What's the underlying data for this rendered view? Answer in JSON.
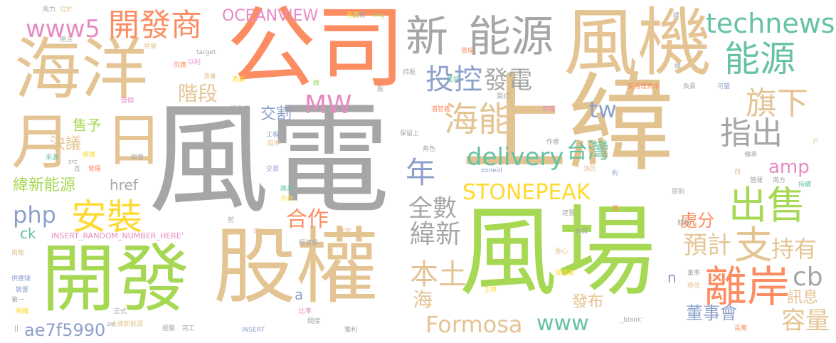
{
  "words": [
    {
      "text": "風電",
      "color": "#a6a6a6"
    },
    {
      "text": "上緯",
      "color": "#e2c28f"
    },
    {
      "text": "風場",
      "color": "#a6d854"
    },
    {
      "text": "公司",
      "color": "#fc8d62"
    },
    {
      "text": "股權",
      "color": "#e5c494"
    },
    {
      "text": "開發",
      "color": "#a6d854"
    },
    {
      "text": "風機",
      "color": "#e5c494"
    },
    {
      "text": "海洋",
      "color": "#e5c494"
    },
    {
      "text": "月",
      "color": "#e5c494"
    },
    {
      "text": "日",
      "color": "#e5c494"
    },
    {
      "text": "新",
      "color": "#a6a6a6"
    },
    {
      "text": "能源",
      "color": "#a6a6a6"
    },
    {
      "text": "能源",
      "color": "#66c2a5"
    },
    {
      "text": "technews",
      "color": "#66c2a5"
    },
    {
      "text": "開發商",
      "color": "#fc8d62"
    },
    {
      "text": "www5",
      "color": "#e78ac3"
    },
    {
      "text": "OCEANVIEW",
      "color": "#e78ac3"
    },
    {
      "text": "投控",
      "color": "#8da0cb"
    },
    {
      "text": "發電",
      "color": "#a6a6a6"
    },
    {
      "text": "海能",
      "color": "#e5c494"
    },
    {
      "text": "旗下",
      "color": "#e5c494"
    },
    {
      "text": "指出",
      "color": "#a6a6a6"
    },
    {
      "text": "出售",
      "color": "#a6d854"
    },
    {
      "text": "安裝",
      "color": "#ffd92f"
    },
    {
      "text": "階段",
      "color": "#e5c494"
    },
    {
      "text": "MW",
      "color": "#e78ac3"
    },
    {
      "text": "交割",
      "color": "#8da0cb"
    },
    {
      "text": "tw",
      "color": "#8da0cb"
    },
    {
      "text": "年",
      "color": "#8da0cb"
    },
    {
      "text": "delivery",
      "color": "#66c2a5"
    },
    {
      "text": "台灣",
      "color": "#66c2a5"
    },
    {
      "text": "amp",
      "color": "#e78ac3"
    },
    {
      "text": "STONEPEAK",
      "color": "#ffd92f"
    },
    {
      "text": "售予",
      "color": "#a6d854"
    },
    {
      "text": "決議",
      "color": "#e5c494"
    },
    {
      "text": "緯新能源",
      "color": "#a6d854"
    },
    {
      "text": "href",
      "color": "#a6a6a6"
    },
    {
      "text": "php",
      "color": "#8da0cb"
    },
    {
      "text": "ck",
      "color": "#66c2a5"
    },
    {
      "text": "全數",
      "color": "#a6a6a6"
    },
    {
      "text": "合作",
      "color": "#fc8d62"
    },
    {
      "text": "緯新",
      "color": "#a6a6a6"
    },
    {
      "text": "本土",
      "color": "#e5c494"
    },
    {
      "text": "支",
      "color": "#e5c494"
    },
    {
      "text": "持有",
      "color": "#e5c494"
    },
    {
      "text": "處分",
      "color": "#fc8d62"
    },
    {
      "text": "預計",
      "color": "#e5c494"
    },
    {
      "text": "離岸",
      "color": "#fc8d62"
    },
    {
      "text": "cb",
      "color": "#a6a6a6"
    },
    {
      "text": "訊息",
      "color": "#e5c494"
    },
    {
      "text": "容量",
      "color": "#e5c494"
    },
    {
      "text": "海",
      "color": "#e5c494"
    },
    {
      "text": "發布",
      "color": "#e5c494"
    },
    {
      "text": "www",
      "color": "#66c2a5"
    },
    {
      "text": "Formosa",
      "color": "#e5c494"
    },
    {
      "text": "董事會",
      "color": "#8da0cb"
    },
    {
      "text": "a",
      "color": "#8da0cb"
    },
    {
      "text": "ae7f5990",
      "color": "#8da0cb"
    },
    {
      "text": "n",
      "color": "#8da0cb"
    },
    {
      "text": "INSERT_RANDOM_NUMBER_HERE'",
      "color": "#e78ac3"
    },
    {
      "text": "風力",
      "color": "#a6a6a6"
    },
    {
      "text": "位於",
      "color": "#e5c494"
    },
    {
      "text": "商轉",
      "color": "#a6a6a6"
    },
    {
      "text": "先前",
      "color": "#ffd92f"
    },
    {
      "text": "img",
      "color": "#a6d854"
    },
    {
      "text": "緯",
      "color": "#a6a6a6"
    },
    {
      "text": "挹注",
      "color": "#a6a6a6"
    },
    {
      "text": "共榮",
      "color": "#e5c494"
    },
    {
      "text": "target",
      "color": "#a6a6a6"
    },
    {
      "text": "首座",
      "color": "#fc8d62"
    },
    {
      "text": "總",
      "color": "#a6a6a6"
    },
    {
      "text": "供應",
      "color": "#fc8d62"
    },
    {
      "text": "以利",
      "color": "#e78ac3"
    },
    {
      "text": "漁會",
      "color": "#e5c494"
    },
    {
      "text": "漁業",
      "color": "#ffd92f"
    },
    {
      "text": "持股",
      "color": "#a6a6a6"
    },
    {
      "text": "陸域",
      "color": "#66c2a5"
    },
    {
      "text": "釋",
      "color": "#a6d854"
    },
    {
      "text": "股",
      "color": "#a6a6a6"
    },
    {
      "text": "麥格理資本",
      "color": "#fc8d62"
    },
    {
      "text": "負責",
      "color": "#a6a6a6"
    },
    {
      "text": "可望",
      "color": "#8da0cb"
    },
    {
      "text": "首個",
      "color": "#e78ac3"
    },
    {
      "text": "開發案",
      "color": "#a6a6a6"
    },
    {
      "text": "簽訂",
      "color": "#a6a6a6"
    },
    {
      "text": "潘智義",
      "color": "#fc8d62"
    },
    {
      "text": "年底",
      "color": "#e78ac3"
    },
    {
      "text": "工程",
      "color": "#8da0cb"
    },
    {
      "text": "保留上",
      "color": "#a6a6a6"
    },
    {
      "text": "延伸",
      "color": "#e5c494"
    },
    {
      "text": "作者",
      "color": "#a6a6a6"
    },
    {
      "text": "角色",
      "color": "#a6a6a6"
    },
    {
      "text": "來源",
      "color": "#66c2a5"
    },
    {
      "text": "src",
      "color": "#a6a6a6"
    },
    {
      "text": "維護",
      "color": "#ffd92f"
    },
    {
      "text": "瓦",
      "color": "#a6a6a6"
    },
    {
      "text": "發展",
      "color": "#fc8d62"
    },
    {
      "text": "同意",
      "color": "#a6a6a6"
    },
    {
      "text": "交易",
      "color": "#8da0cb"
    },
    {
      "text": "zoneid",
      "color": "#8da0cb"
    },
    {
      "text": "漁民",
      "color": "#e5c494"
    },
    {
      "text": "約",
      "color": "#8da0cb"
    },
    {
      "text": "傳承",
      "color": "#a6a6a6"
    },
    {
      "text": "西",
      "color": "#e5c494"
    },
    {
      "text": "戶",
      "color": "#e5c494"
    },
    {
      "text": "營運",
      "color": "#a6a6a6"
    },
    {
      "text": "南方",
      "color": "#a6a6a6"
    },
    {
      "text": "持續",
      "color": "#66c2a5"
    },
    {
      "text": "降為",
      "color": "#66c2a5"
    },
    {
      "text": "共存",
      "color": "#ffd92f"
    },
    {
      "text": "原則",
      "color": "#a6a6a6"
    },
    {
      "text": "萬",
      "color": "#fc8d62"
    },
    {
      "text": "建置",
      "color": "#a6a6a6"
    },
    {
      "text": "前",
      "color": "#a6a6a6"
    },
    {
      "text": "席",
      "color": "#e5c494"
    },
    {
      "text": "家庭",
      "color": "#e5c494"
    },
    {
      "text": "期限",
      "color": "#a6a6a6"
    },
    {
      "text": "參與",
      "color": "#a6a6a6"
    },
    {
      "text": "經濟部",
      "color": "#a6a6a6"
    },
    {
      "text": "重心",
      "color": "#e5c494"
    },
    {
      "text": "南龍",
      "color": "#e5c494"
    },
    {
      "text": "董事",
      "color": "#a6a6a6"
    },
    {
      "text": "供應鏈",
      "color": "#8da0cb"
    },
    {
      "text": "協議書",
      "color": "#ffd92f"
    },
    {
      "text": "裝置",
      "color": "#8da0cb"
    },
    {
      "text": "移往",
      "color": "#e5c494"
    },
    {
      "text": "主導",
      "color": "#ffd92f"
    },
    {
      "text": "第一",
      "color": "#a6a6a6"
    },
    {
      "text": "閘鐵",
      "color": "#ffd92f"
    },
    {
      "text": "正式",
      "color": "#a6a6a6"
    },
    {
      "text": "比率",
      "color": "#e78ac3"
    },
    {
      "text": "間接",
      "color": "#a6a6a6"
    },
    {
      "text": "aw",
      "color": "#a6a6a6"
    },
    {
      "text": "上緯新能源",
      "color": "#e5c494"
    },
    {
      "text": "經驗",
      "color": "#a6a6a6"
    },
    {
      "text": "完工",
      "color": "#a6a6a6"
    },
    {
      "text": "INSERT",
      "color": "#8da0cb"
    },
    {
      "text": "獲利",
      "color": "#a6a6a6"
    },
    {
      "text": "_blank'",
      "color": "#a6a6a6"
    },
    {
      "text": "百萬",
      "color": "#fc8d62"
    },
    {
      "text": "||",
      "color": "#a6a6a6"
    }
  ]
}
